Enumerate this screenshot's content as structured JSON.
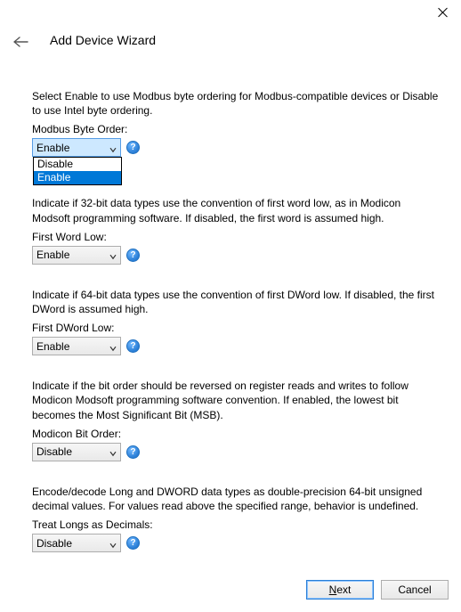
{
  "window": {
    "title": "Add Device Wizard"
  },
  "options": {
    "disable": "Disable",
    "enable": "Enable"
  },
  "sections": {
    "byteOrder": {
      "desc": "Select Enable to use Modbus byte ordering for Modbus-compatible devices or Disable to use Intel byte ordering.",
      "label": "Modbus Byte Order:",
      "value": "Enable",
      "dropdownOpen": true,
      "selectedOption": "Enable"
    },
    "firstWordLow": {
      "desc": "Indicate if 32-bit data types use the convention of first word low, as in Modicon Modsoft programming software. If disabled, the first word is assumed high.",
      "label": "First Word Low:",
      "value": "Enable"
    },
    "firstDWordLow": {
      "desc": "Indicate if 64-bit data types use the convention of first DWord low. If disabled, the first DWord is assumed high.",
      "label": "First DWord Low:",
      "value": "Enable"
    },
    "modiconBitOrder": {
      "desc": "Indicate if the bit order should be reversed on register reads and writes to follow Modicon Modsoft programming software convention. If enabled, the lowest bit becomes the Most Significant Bit (MSB).",
      "label": "Modicon Bit Order:",
      "value": "Disable"
    },
    "treatLongs": {
      "desc": "Encode/decode Long and DWORD data types as double-precision 64-bit unsigned decimal values. For values read above the specified range, behavior is undefined.",
      "label": "Treat Longs as Decimals:",
      "value": "Disable"
    }
  },
  "footer": {
    "next": "Next",
    "cancel": "Cancel"
  },
  "helpGlyph": "?"
}
